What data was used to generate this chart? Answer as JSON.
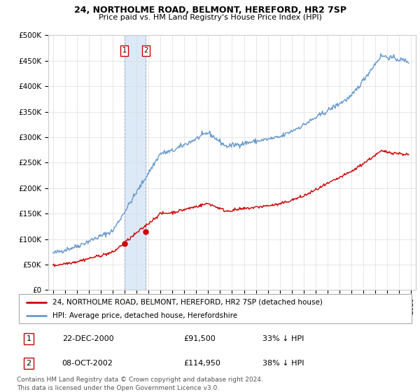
{
  "title": "24, NORTHOLME ROAD, BELMONT, HEREFORD, HR2 7SP",
  "subtitle": "Price paid vs. HM Land Registry's House Price Index (HPI)",
  "address_label": "24, NORTHOLME ROAD, BELMONT, HEREFORD, HR2 7SP (detached house)",
  "hpi_label": "HPI: Average price, detached house, Herefordshire",
  "transaction1_date": "22-DEC-2000",
  "transaction1_price": "£91,500",
  "transaction1_hpi": "33% ↓ HPI",
  "transaction2_date": "08-OCT-2002",
  "transaction2_price": "£114,950",
  "transaction2_hpi": "38% ↓ HPI",
  "footer": "Contains HM Land Registry data © Crown copyright and database right 2024.\nThis data is licensed under the Open Government Licence v3.0.",
  "property_color": "#cc0000",
  "hpi_color": "#6699cc",
  "highlight_color": "#dce9f7",
  "ylim": [
    0,
    500000
  ],
  "yticks": [
    0,
    50000,
    100000,
    150000,
    200000,
    250000,
    300000,
    350000,
    400000,
    450000,
    500000
  ],
  "ytick_labels": [
    "£0",
    "£50K",
    "£100K",
    "£150K",
    "£200K",
    "£250K",
    "£300K",
    "£350K",
    "£400K",
    "£450K",
    "£500K"
  ],
  "transaction1_x": 2000.97,
  "transaction2_x": 2002.77,
  "transaction1_y": 91500,
  "transaction2_y": 114950,
  "xlim_left": 1994.6,
  "xlim_right": 2025.4
}
